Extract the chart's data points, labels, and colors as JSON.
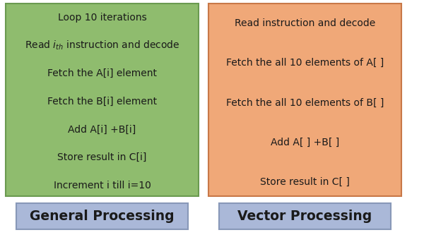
{
  "bg_color": "#ffffff",
  "left_box_color": "#8fbc6e",
  "right_box_color": "#f0a878",
  "label_box_color": "#aab8d8",
  "left_lines_plain": [
    "Loop 10 iterations",
    null,
    "Fetch the A[i] element",
    "Fetch the B[i] element",
    "Add A[i] +B[i]",
    "Store result in C[i]",
    "Increment i till i=10"
  ],
  "right_lines": [
    "Read instruction and decode",
    "Fetch the all 10 elements of A[ ]",
    "Fetch the all 10 elements of B[ ]",
    "Add A[ ] +B[ ]",
    "Store result in C[ ]"
  ],
  "left_label": "General Processing",
  "right_label": "Vector Processing",
  "text_color": "#1a1a1a",
  "label_text_color": "#1a1a1a",
  "font_size": 10.0,
  "label_font_size": 13.5,
  "left_box_edge": "#6a9a50",
  "right_box_edge": "#c87848",
  "label_box_edge": "#8898b8"
}
